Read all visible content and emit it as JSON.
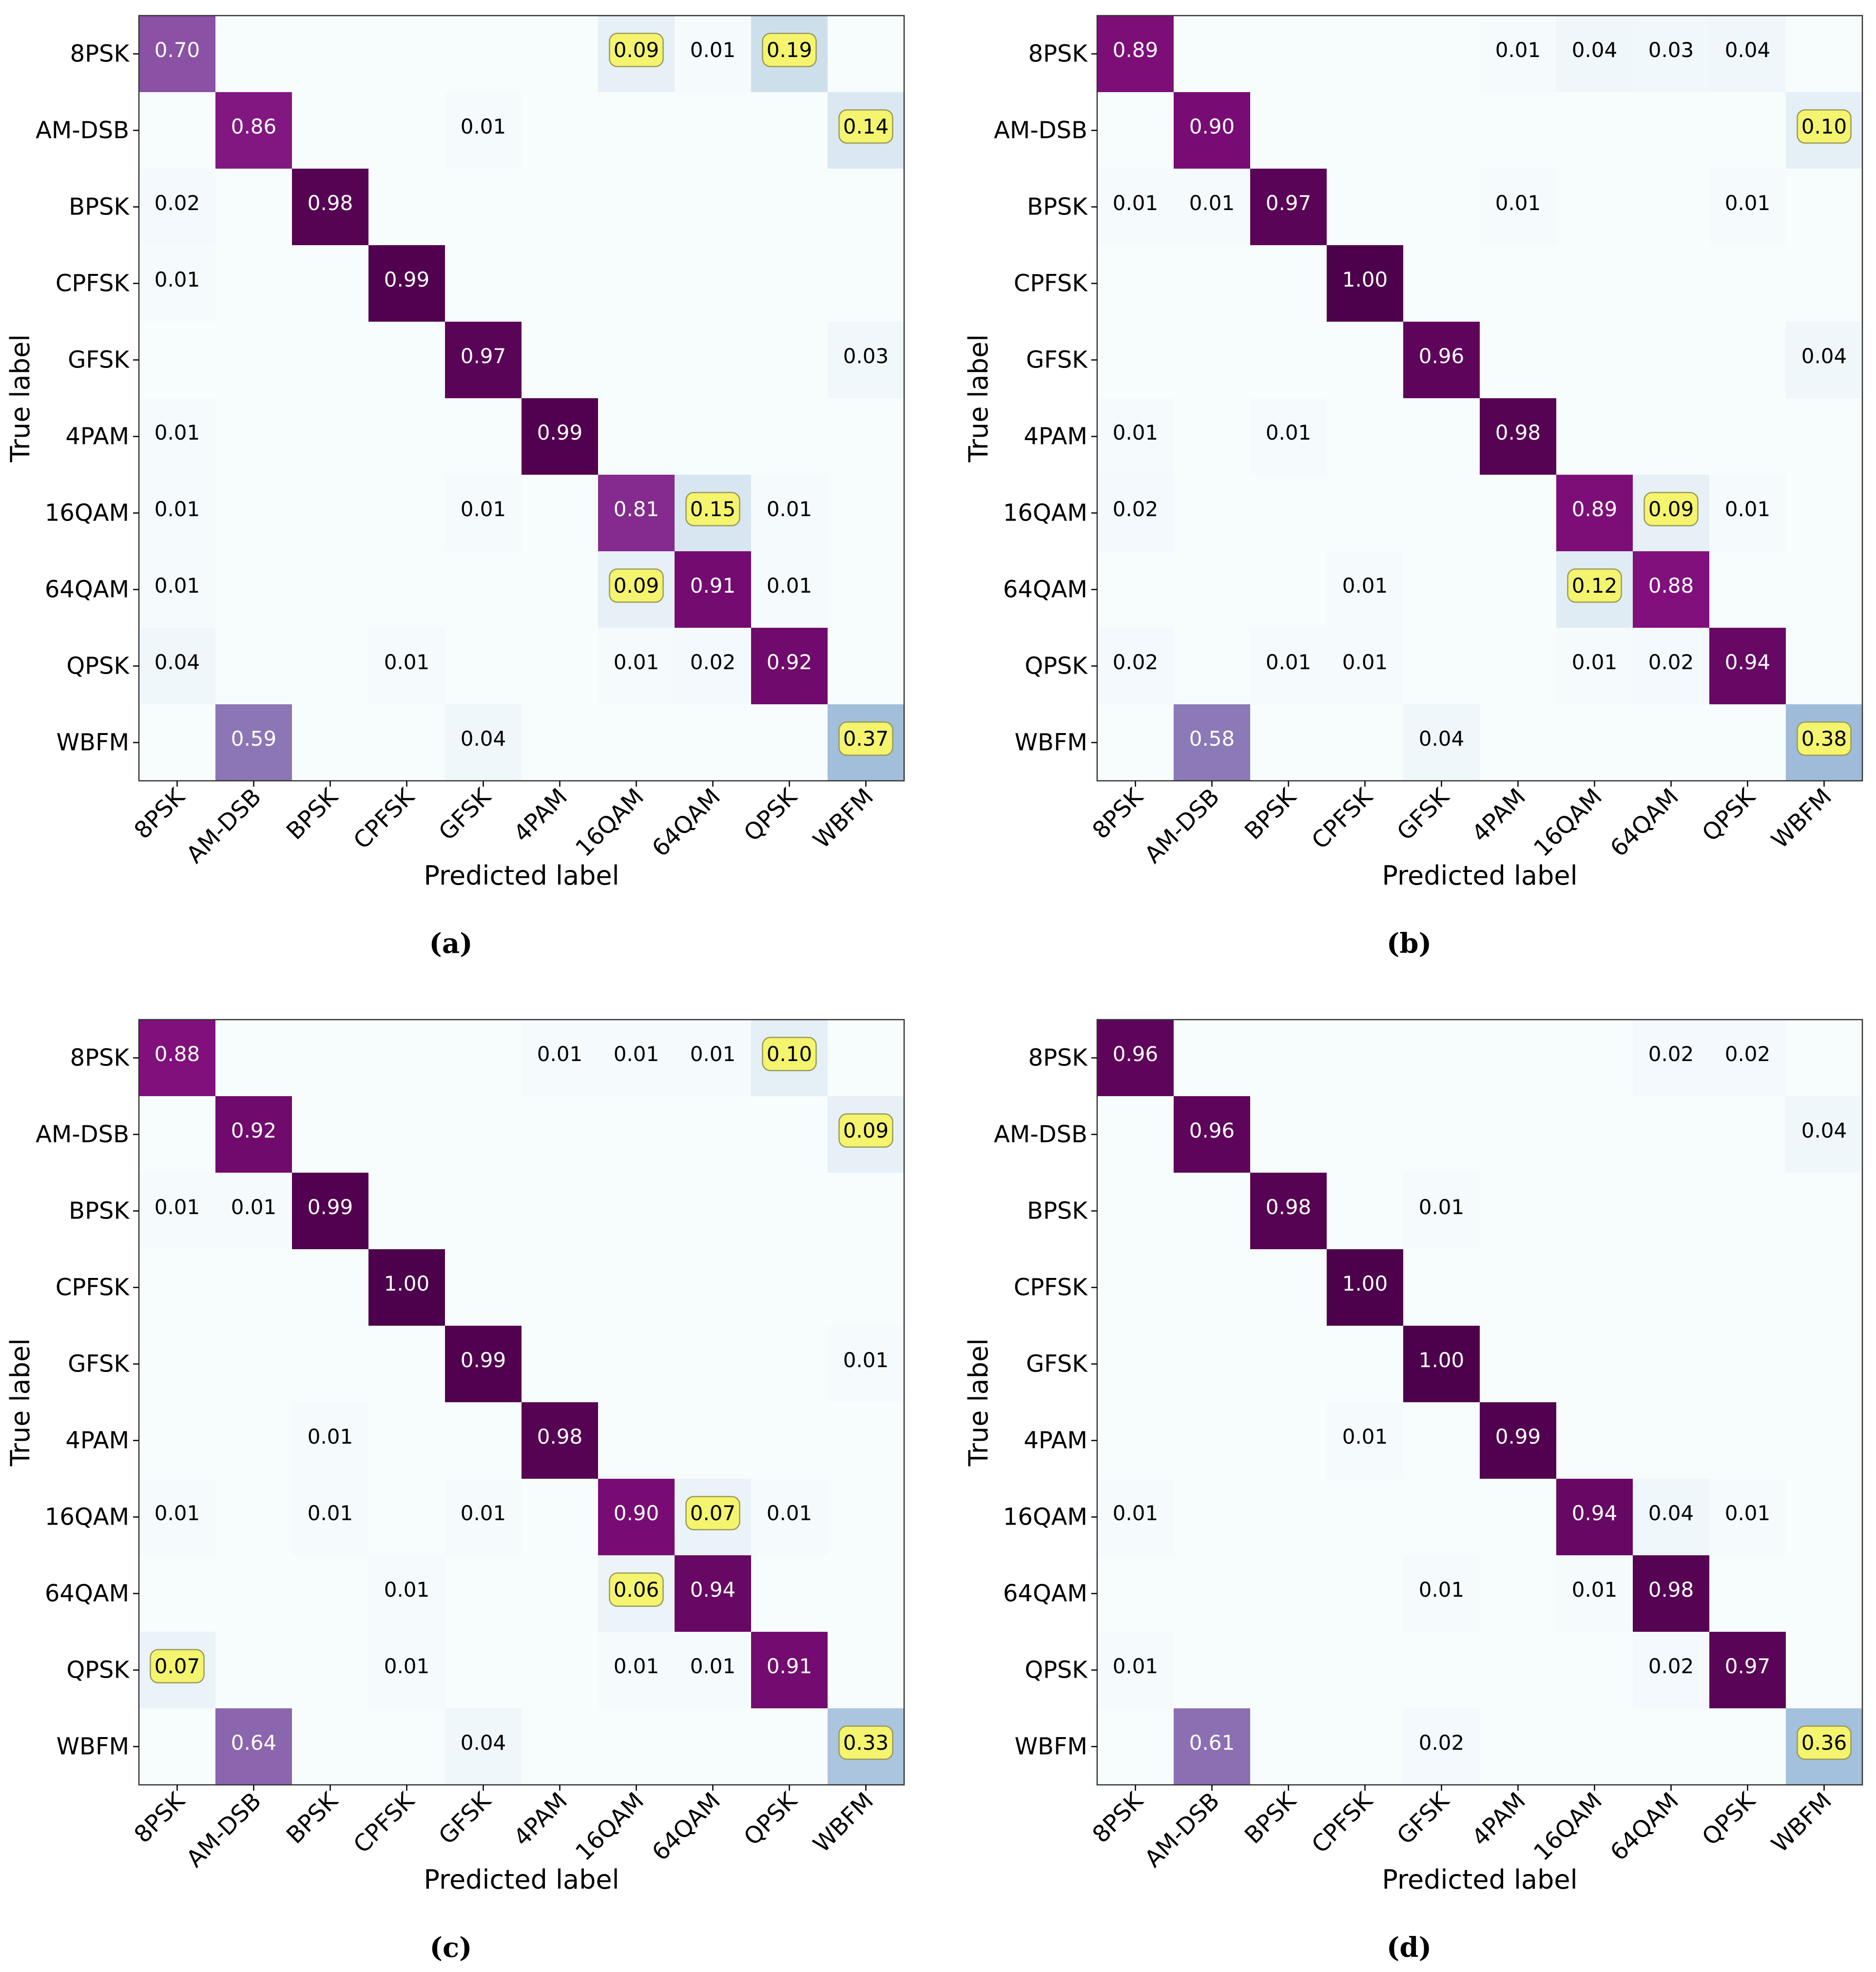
{
  "chart_data": [
    {
      "type": "heatmap",
      "panel": "a",
      "caption": "(a)",
      "xlabel": "Predicted label",
      "ylabel": "True label",
      "row_labels": [
        "8PSK",
        "AM-DSB",
        "BPSK",
        "CPFSK",
        "GFSK",
        "4PAM",
        "16QAM",
        "64QAM",
        "QPSK",
        "WBFM"
      ],
      "col_labels": [
        "8PSK",
        "AM-DSB",
        "BPSK",
        "CPFSK",
        "GFSK",
        "4PAM",
        "16QAM",
        "64QAM",
        "QPSK",
        "WBFM"
      ],
      "vrange": [
        0,
        1
      ],
      "cells": [
        {
          "r": 0,
          "c": 0,
          "v": 0.7,
          "label": "0.70"
        },
        {
          "r": 0,
          "c": 6,
          "v": 0.09,
          "label": "0.09",
          "highlight": true
        },
        {
          "r": 0,
          "c": 7,
          "v": 0.01,
          "label": "0.01"
        },
        {
          "r": 0,
          "c": 8,
          "v": 0.19,
          "label": "0.19",
          "highlight": true
        },
        {
          "r": 1,
          "c": 1,
          "v": 0.86,
          "label": "0.86"
        },
        {
          "r": 1,
          "c": 4,
          "v": 0.01,
          "label": "0.01"
        },
        {
          "r": 1,
          "c": 9,
          "v": 0.14,
          "label": "0.14",
          "highlight": true
        },
        {
          "r": 2,
          "c": 0,
          "v": 0.02,
          "label": "0.02"
        },
        {
          "r": 2,
          "c": 2,
          "v": 0.98,
          "label": "0.98"
        },
        {
          "r": 3,
          "c": 0,
          "v": 0.01,
          "label": "0.01"
        },
        {
          "r": 3,
          "c": 3,
          "v": 0.99,
          "label": "0.99"
        },
        {
          "r": 4,
          "c": 4,
          "v": 0.97,
          "label": "0.97"
        },
        {
          "r": 4,
          "c": 9,
          "v": 0.03,
          "label": "0.03"
        },
        {
          "r": 5,
          "c": 0,
          "v": 0.01,
          "label": "0.01"
        },
        {
          "r": 5,
          "c": 5,
          "v": 0.99,
          "label": "0.99"
        },
        {
          "r": 6,
          "c": 0,
          "v": 0.01,
          "label": "0.01"
        },
        {
          "r": 6,
          "c": 4,
          "v": 0.01,
          "label": "0.01"
        },
        {
          "r": 6,
          "c": 6,
          "v": 0.81,
          "label": "0.81"
        },
        {
          "r": 6,
          "c": 7,
          "v": 0.15,
          "label": "0.15",
          "highlight": true
        },
        {
          "r": 6,
          "c": 8,
          "v": 0.01,
          "label": "0.01"
        },
        {
          "r": 7,
          "c": 0,
          "v": 0.01,
          "label": "0.01"
        },
        {
          "r": 7,
          "c": 6,
          "v": 0.09,
          "label": "0.09",
          "highlight": true
        },
        {
          "r": 7,
          "c": 7,
          "v": 0.91,
          "label": "0.91"
        },
        {
          "r": 7,
          "c": 8,
          "v": 0.01,
          "label": "0.01"
        },
        {
          "r": 8,
          "c": 0,
          "v": 0.04,
          "label": "0.04"
        },
        {
          "r": 8,
          "c": 3,
          "v": 0.01,
          "label": "0.01"
        },
        {
          "r": 8,
          "c": 6,
          "v": 0.01,
          "label": "0.01"
        },
        {
          "r": 8,
          "c": 7,
          "v": 0.02,
          "label": "0.02"
        },
        {
          "r": 8,
          "c": 8,
          "v": 0.92,
          "label": "0.92"
        },
        {
          "r": 9,
          "c": 1,
          "v": 0.59,
          "label": "0.59"
        },
        {
          "r": 9,
          "c": 4,
          "v": 0.04,
          "label": "0.04"
        },
        {
          "r": 9,
          "c": 9,
          "v": 0.37,
          "label": "0.37",
          "highlight": true
        }
      ]
    },
    {
      "type": "heatmap",
      "panel": "b",
      "caption": "(b)",
      "xlabel": "Predicted label",
      "ylabel": "True label",
      "row_labels": [
        "8PSK",
        "AM-DSB",
        "BPSK",
        "CPFSK",
        "GFSK",
        "4PAM",
        "16QAM",
        "64QAM",
        "QPSK",
        "WBFM"
      ],
      "col_labels": [
        "8PSK",
        "AM-DSB",
        "BPSK",
        "CPFSK",
        "GFSK",
        "4PAM",
        "16QAM",
        "64QAM",
        "QPSK",
        "WBFM"
      ],
      "vrange": [
        0,
        1
      ],
      "cells": [
        {
          "r": 0,
          "c": 0,
          "v": 0.89,
          "label": "0.89"
        },
        {
          "r": 0,
          "c": 5,
          "v": 0.01,
          "label": "0.01"
        },
        {
          "r": 0,
          "c": 6,
          "v": 0.04,
          "label": "0.04"
        },
        {
          "r": 0,
          "c": 7,
          "v": 0.03,
          "label": "0.03"
        },
        {
          "r": 0,
          "c": 8,
          "v": 0.04,
          "label": "0.04"
        },
        {
          "r": 1,
          "c": 1,
          "v": 0.9,
          "label": "0.90"
        },
        {
          "r": 1,
          "c": 9,
          "v": 0.1,
          "label": "0.10",
          "highlight": true
        },
        {
          "r": 2,
          "c": 0,
          "v": 0.01,
          "label": "0.01"
        },
        {
          "r": 2,
          "c": 1,
          "v": 0.01,
          "label": "0.01"
        },
        {
          "r": 2,
          "c": 2,
          "v": 0.97,
          "label": "0.97"
        },
        {
          "r": 2,
          "c": 5,
          "v": 0.01,
          "label": "0.01"
        },
        {
          "r": 2,
          "c": 8,
          "v": 0.01,
          "label": "0.01"
        },
        {
          "r": 3,
          "c": 3,
          "v": 1.0,
          "label": "1.00"
        },
        {
          "r": 4,
          "c": 4,
          "v": 0.96,
          "label": "0.96"
        },
        {
          "r": 4,
          "c": 9,
          "v": 0.04,
          "label": "0.04"
        },
        {
          "r": 5,
          "c": 0,
          "v": 0.01,
          "label": "0.01"
        },
        {
          "r": 5,
          "c": 2,
          "v": 0.01,
          "label": "0.01"
        },
        {
          "r": 5,
          "c": 5,
          "v": 0.98,
          "label": "0.98"
        },
        {
          "r": 6,
          "c": 0,
          "v": 0.02,
          "label": "0.02"
        },
        {
          "r": 6,
          "c": 6,
          "v": 0.89,
          "label": "0.89"
        },
        {
          "r": 6,
          "c": 7,
          "v": 0.09,
          "label": "0.09",
          "highlight": true
        },
        {
          "r": 6,
          "c": 8,
          "v": 0.01,
          "label": "0.01"
        },
        {
          "r": 7,
          "c": 3,
          "v": 0.01,
          "label": "0.01"
        },
        {
          "r": 7,
          "c": 6,
          "v": 0.12,
          "label": "0.12",
          "highlight": true
        },
        {
          "r": 7,
          "c": 7,
          "v": 0.88,
          "label": "0.88"
        },
        {
          "r": 8,
          "c": 0,
          "v": 0.02,
          "label": "0.02"
        },
        {
          "r": 8,
          "c": 2,
          "v": 0.01,
          "label": "0.01"
        },
        {
          "r": 8,
          "c": 3,
          "v": 0.01,
          "label": "0.01"
        },
        {
          "r": 8,
          "c": 6,
          "v": 0.01,
          "label": "0.01"
        },
        {
          "r": 8,
          "c": 7,
          "v": 0.02,
          "label": "0.02"
        },
        {
          "r": 8,
          "c": 8,
          "v": 0.94,
          "label": "0.94"
        },
        {
          "r": 9,
          "c": 1,
          "v": 0.58,
          "label": "0.58"
        },
        {
          "r": 9,
          "c": 4,
          "v": 0.04,
          "label": "0.04"
        },
        {
          "r": 9,
          "c": 9,
          "v": 0.38,
          "label": "0.38",
          "highlight": true
        }
      ]
    },
    {
      "type": "heatmap",
      "panel": "c",
      "caption": "(c)",
      "xlabel": "Predicted label",
      "ylabel": "True label",
      "row_labels": [
        "8PSK",
        "AM-DSB",
        "BPSK",
        "CPFSK",
        "GFSK",
        "4PAM",
        "16QAM",
        "64QAM",
        "QPSK",
        "WBFM"
      ],
      "col_labels": [
        "8PSK",
        "AM-DSB",
        "BPSK",
        "CPFSK",
        "GFSK",
        "4PAM",
        "16QAM",
        "64QAM",
        "QPSK",
        "WBFM"
      ],
      "vrange": [
        0,
        1
      ],
      "cells": [
        {
          "r": 0,
          "c": 0,
          "v": 0.88,
          "label": "0.88"
        },
        {
          "r": 0,
          "c": 5,
          "v": 0.01,
          "label": "0.01"
        },
        {
          "r": 0,
          "c": 6,
          "v": 0.01,
          "label": "0.01"
        },
        {
          "r": 0,
          "c": 7,
          "v": 0.01,
          "label": "0.01"
        },
        {
          "r": 0,
          "c": 8,
          "v": 0.1,
          "label": "0.10",
          "highlight": true
        },
        {
          "r": 1,
          "c": 1,
          "v": 0.92,
          "label": "0.92"
        },
        {
          "r": 1,
          "c": 9,
          "v": 0.09,
          "label": "0.09",
          "highlight": true
        },
        {
          "r": 2,
          "c": 0,
          "v": 0.01,
          "label": "0.01"
        },
        {
          "r": 2,
          "c": 1,
          "v": 0.01,
          "label": "0.01"
        },
        {
          "r": 2,
          "c": 2,
          "v": 0.99,
          "label": "0.99"
        },
        {
          "r": 3,
          "c": 3,
          "v": 1.0,
          "label": "1.00"
        },
        {
          "r": 4,
          "c": 4,
          "v": 0.99,
          "label": "0.99"
        },
        {
          "r": 4,
          "c": 9,
          "v": 0.01,
          "label": "0.01"
        },
        {
          "r": 5,
          "c": 2,
          "v": 0.01,
          "label": "0.01"
        },
        {
          "r": 5,
          "c": 5,
          "v": 0.98,
          "label": "0.98"
        },
        {
          "r": 6,
          "c": 0,
          "v": 0.01,
          "label": "0.01"
        },
        {
          "r": 6,
          "c": 2,
          "v": 0.01,
          "label": "0.01"
        },
        {
          "r": 6,
          "c": 4,
          "v": 0.01,
          "label": "0.01"
        },
        {
          "r": 6,
          "c": 6,
          "v": 0.9,
          "label": "0.90"
        },
        {
          "r": 6,
          "c": 7,
          "v": 0.07,
          "label": "0.07",
          "highlight": true
        },
        {
          "r": 6,
          "c": 8,
          "v": 0.01,
          "label": "0.01"
        },
        {
          "r": 7,
          "c": 3,
          "v": 0.01,
          "label": "0.01"
        },
        {
          "r": 7,
          "c": 6,
          "v": 0.06,
          "label": "0.06",
          "highlight": true
        },
        {
          "r": 7,
          "c": 7,
          "v": 0.94,
          "label": "0.94"
        },
        {
          "r": 8,
          "c": 0,
          "v": 0.07,
          "label": "0.07",
          "highlight": true
        },
        {
          "r": 8,
          "c": 3,
          "v": 0.01,
          "label": "0.01"
        },
        {
          "r": 8,
          "c": 6,
          "v": 0.01,
          "label": "0.01"
        },
        {
          "r": 8,
          "c": 7,
          "v": 0.01,
          "label": "0.01"
        },
        {
          "r": 8,
          "c": 8,
          "v": 0.91,
          "label": "0.91"
        },
        {
          "r": 9,
          "c": 1,
          "v": 0.64,
          "label": "0.64"
        },
        {
          "r": 9,
          "c": 4,
          "v": 0.04,
          "label": "0.04"
        },
        {
          "r": 9,
          "c": 9,
          "v": 0.33,
          "label": "0.33",
          "highlight": true
        }
      ]
    },
    {
      "type": "heatmap",
      "panel": "d",
      "caption": "(d)",
      "xlabel": "Predicted label",
      "ylabel": "True label",
      "row_labels": [
        "8PSK",
        "AM-DSB",
        "BPSK",
        "CPFSK",
        "GFSK",
        "4PAM",
        "16QAM",
        "64QAM",
        "QPSK",
        "WBFM"
      ],
      "col_labels": [
        "8PSK",
        "AM-DSB",
        "BPSK",
        "CPFSK",
        "GFSK",
        "4PAM",
        "16QAM",
        "64QAM",
        "QPSK",
        "WBFM"
      ],
      "vrange": [
        0,
        1
      ],
      "cells": [
        {
          "r": 0,
          "c": 0,
          "v": 0.96,
          "label": "0.96"
        },
        {
          "r": 0,
          "c": 7,
          "v": 0.02,
          "label": "0.02"
        },
        {
          "r": 0,
          "c": 8,
          "v": 0.02,
          "label": "0.02"
        },
        {
          "r": 1,
          "c": 1,
          "v": 0.96,
          "label": "0.96"
        },
        {
          "r": 1,
          "c": 9,
          "v": 0.04,
          "label": "0.04"
        },
        {
          "r": 2,
          "c": 2,
          "v": 0.98,
          "label": "0.98"
        },
        {
          "r": 2,
          "c": 4,
          "v": 0.01,
          "label": "0.01"
        },
        {
          "r": 3,
          "c": 3,
          "v": 1.0,
          "label": "1.00"
        },
        {
          "r": 4,
          "c": 4,
          "v": 1.0,
          "label": "1.00"
        },
        {
          "r": 5,
          "c": 3,
          "v": 0.01,
          "label": "0.01"
        },
        {
          "r": 5,
          "c": 5,
          "v": 0.99,
          "label": "0.99"
        },
        {
          "r": 6,
          "c": 0,
          "v": 0.01,
          "label": "0.01"
        },
        {
          "r": 6,
          "c": 6,
          "v": 0.94,
          "label": "0.94"
        },
        {
          "r": 6,
          "c": 7,
          "v": 0.04,
          "label": "0.04"
        },
        {
          "r": 6,
          "c": 8,
          "v": 0.01,
          "label": "0.01"
        },
        {
          "r": 7,
          "c": 4,
          "v": 0.01,
          "label": "0.01"
        },
        {
          "r": 7,
          "c": 6,
          "v": 0.01,
          "label": "0.01"
        },
        {
          "r": 7,
          "c": 7,
          "v": 0.98,
          "label": "0.98"
        },
        {
          "r": 8,
          "c": 0,
          "v": 0.01,
          "label": "0.01"
        },
        {
          "r": 8,
          "c": 7,
          "v": 0.02,
          "label": "0.02"
        },
        {
          "r": 8,
          "c": 8,
          "v": 0.97,
          "label": "0.97"
        },
        {
          "r": 9,
          "c": 1,
          "v": 0.61,
          "label": "0.61"
        },
        {
          "r": 9,
          "c": 4,
          "v": 0.02,
          "label": "0.02"
        },
        {
          "r": 9,
          "c": 9,
          "v": 0.36,
          "label": "0.36",
          "highlight": true
        }
      ]
    }
  ]
}
